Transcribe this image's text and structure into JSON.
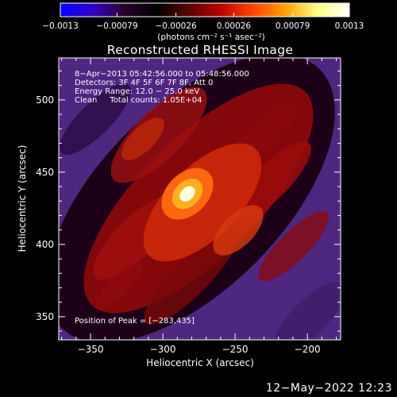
{
  "chart_data": {
    "type": "heatmap",
    "title": "Reconstructed RHESSI Image",
    "xlabel": "Heliocentric X (arcsec)",
    "ylabel": "Heliocentric Y (arcsec)",
    "xlim": [
      -372,
      -177
    ],
    "ylim": [
      334,
      529
    ],
    "xticks": [
      -350,
      -300,
      -250,
      -200
    ],
    "yticks": [
      350,
      400,
      450,
      500
    ],
    "xtick_labels": [
      "−350",
      "−300",
      "−250",
      "−200"
    ],
    "ytick_labels": [
      "350",
      "400",
      "450",
      "500"
    ],
    "colorbar": {
      "range": [
        -0.0013,
        0.0013
      ],
      "ticks": [
        -0.0013,
        -0.00079,
        -0.00026,
        0.00026,
        0.00079,
        0.0013
      ],
      "tick_labels": [
        "−0.0013",
        "−0.00079",
        "−0.00026",
        "0.00026",
        "0.00079",
        "0.0013"
      ],
      "units": "(photons cm⁻² s⁻¹ asec⁻²)",
      "colors": [
        "#0000ff",
        "#3300cc",
        "#2a002a",
        "#000000",
        "#5a0000",
        "#c00000",
        "#ff4400",
        "#ffa000",
        "#ffff80",
        "#ffffff"
      ]
    },
    "annotations": [
      "8−Apr−2013 05:42:56.000 to 05:48:56.000",
      "Detectors: 3F 4F 5F 6F 7F 8F, Att 0",
      "Energy Range: 12.0 − 25.0 keV",
      "Clean     Total counts: 1.05E+04"
    ],
    "peak_label": "Position of Peak = [−283,435]",
    "peak": [
      -283,
      435
    ],
    "image_colors": {
      "background_purple": "#5a2a8c",
      "dark": "#1a0010",
      "core": "#ffffe0"
    }
  },
  "footer": {
    "timestamp": "12−May−2022 12:23"
  }
}
